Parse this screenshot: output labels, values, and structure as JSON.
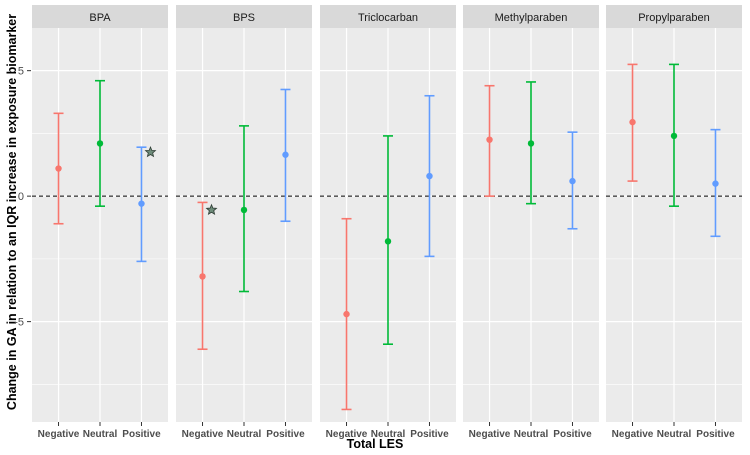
{
  "chart_data": {
    "type": "errorbar",
    "xlabel": "Total LES",
    "ylabel": "Change in GA in relation to an IQR increase in exposure biomarker",
    "categories": [
      "Negative",
      "Neutral",
      "Positive"
    ],
    "y_ticks": [
      -5,
      0,
      5
    ],
    "ylim": [
      -9,
      6.7
    ],
    "grid": true,
    "reference_line": 0,
    "legend": "none",
    "group_colors": {
      "Negative": "#F8766D",
      "Neutral": "#00BA38",
      "Positive": "#619CFF"
    },
    "panels": [
      {
        "title": "BPA",
        "points": [
          {
            "category": "Negative",
            "estimate": 1.1,
            "lower": -1.1,
            "upper": 3.3
          },
          {
            "category": "Neutral",
            "estimate": 2.1,
            "lower": -0.4,
            "upper": 4.6
          },
          {
            "category": "Positive",
            "estimate": -0.3,
            "lower": -2.6,
            "upper": 1.95
          }
        ],
        "stars": [
          {
            "category": "Positive",
            "y": 1.75
          }
        ]
      },
      {
        "title": "BPS",
        "points": [
          {
            "category": "Negative",
            "estimate": -3.2,
            "lower": -6.1,
            "upper": -0.25
          },
          {
            "category": "Neutral",
            "estimate": -0.55,
            "lower": -3.8,
            "upper": 2.8
          },
          {
            "category": "Positive",
            "estimate": 1.65,
            "lower": -1.0,
            "upper": 4.25
          }
        ],
        "stars": [
          {
            "category": "Negative",
            "y": -0.55
          }
        ]
      },
      {
        "title": "Triclocarban",
        "points": [
          {
            "category": "Negative",
            "estimate": -4.7,
            "lower": -8.5,
            "upper": -0.9
          },
          {
            "category": "Neutral",
            "estimate": -1.8,
            "lower": -5.9,
            "upper": 2.4
          },
          {
            "category": "Positive",
            "estimate": 0.8,
            "lower": -2.4,
            "upper": 4.0
          }
        ],
        "stars": []
      },
      {
        "title": "Methylparaben",
        "points": [
          {
            "category": "Negative",
            "estimate": 2.25,
            "lower": 0.0,
            "upper": 4.4
          },
          {
            "category": "Neutral",
            "estimate": 2.1,
            "lower": -0.3,
            "upper": 4.55
          },
          {
            "category": "Positive",
            "estimate": 0.6,
            "lower": -1.3,
            "upper": 2.55
          }
        ],
        "stars": []
      },
      {
        "title": "Propylparaben",
        "points": [
          {
            "category": "Negative",
            "estimate": 2.95,
            "lower": 0.6,
            "upper": 5.25
          },
          {
            "category": "Neutral",
            "estimate": 2.4,
            "lower": -0.4,
            "upper": 5.25
          },
          {
            "category": "Positive",
            "estimate": 0.5,
            "lower": -1.6,
            "upper": 2.65
          }
        ],
        "stars": []
      }
    ]
  }
}
